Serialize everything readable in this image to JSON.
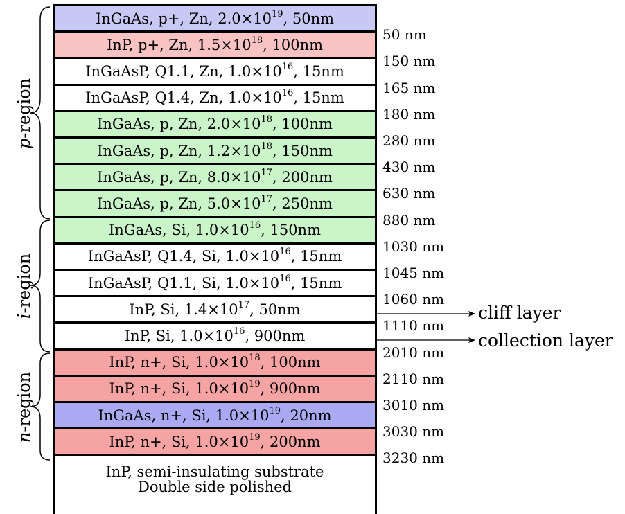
{
  "layers": [
    {
      "material": "InGaAs, p+, Zn, 2.0×10",
      "exp": "19",
      "tail": ", 50nm",
      "color": "#c8c8f5"
    },
    {
      "material": "InP, p+, Zn, 1.5×10",
      "exp": "18",
      "tail": ", 100nm",
      "color": "#f9c3c3"
    },
    {
      "material": "InGaAsP, Q1.1, Zn, 1.0×10",
      "exp": "16",
      "tail": ", 15nm",
      "color": "#ffffff"
    },
    {
      "material": "InGaAsP, Q1.4, Zn, 1.0×10",
      "exp": "16",
      "tail": ", 15nm",
      "color": "#ffffff"
    },
    {
      "material": "InGaAs, p, Zn, 2.0×10",
      "exp": "18",
      "tail": ", 100nm",
      "color": "#c9f5c9"
    },
    {
      "material": "InGaAs, p, Zn, 1.2×10",
      "exp": "18",
      "tail": ", 150nm",
      "color": "#c9f5c9"
    },
    {
      "material": "InGaAs, p, Zn, 8.0×10",
      "exp": "17",
      "tail": ", 200nm",
      "color": "#c9f5c9"
    },
    {
      "material": "InGaAs, p, Zn, 5.0×10",
      "exp": "17",
      "tail": ", 250nm",
      "color": "#c9f5c9"
    },
    {
      "material": "InGaAs, Si, 1.0×10",
      "exp": "16",
      "tail": ", 150nm",
      "color": "#c9f5c9"
    },
    {
      "material": "InGaAsP, Q1.4, Si, 1.0×10",
      "exp": "16",
      "tail": ", 15nm",
      "color": "#ffffff"
    },
    {
      "material": "InGaAsP, Q1.1, Si, 1.0×10",
      "exp": "16",
      "tail": ", 15nm",
      "color": "#ffffff"
    },
    {
      "material": "InP, Si, 1.4×10",
      "exp": "17",
      "tail": ", 50nm",
      "color": "#ffffff"
    },
    {
      "material": "InP, Si, 1.0×10",
      "exp": "16",
      "tail": ", 900nm",
      "color": "#ffffff"
    },
    {
      "material": "InP, n+, Si, 1.0×10",
      "exp": "18",
      "tail": ", 100nm",
      "color": "#f5a3a3"
    },
    {
      "material": "InP, n+, Si, 1.0×10",
      "exp": "19",
      "tail": ", 900nm",
      "color": "#f5a3a3"
    },
    {
      "material": "InGaAs, n+, Si, 1.0×10",
      "exp": "19",
      "tail": ", 20nm",
      "color": "#aaaaf2"
    },
    {
      "material": "InP, n+, Si, 1.0×10",
      "exp": "19",
      "tail": ", 200nm",
      "color": "#f5a3a3"
    }
  ],
  "substrate": {
    "line1": "InP, semi-insulating substrate",
    "line2": "Double side polished"
  },
  "depths": [
    "50 nm",
    "150 nm",
    "165 nm",
    "180 nm",
    "280 nm",
    "430 nm",
    "630 nm",
    "880 nm",
    "1030 nm",
    "1045 nm",
    "1060 nm",
    "1110 nm",
    "2010 nm",
    "2110 nm",
    "3010 nm",
    "3030 nm",
    "3230 nm"
  ],
  "annotations": {
    "cliff": "cliff layer",
    "collection": "collection layer"
  },
  "regions": {
    "p": {
      "letter": "p",
      "suffix": "-region"
    },
    "i": {
      "letter": "i",
      "suffix": "-region"
    },
    "n": {
      "letter": "n",
      "suffix": "-region"
    }
  }
}
